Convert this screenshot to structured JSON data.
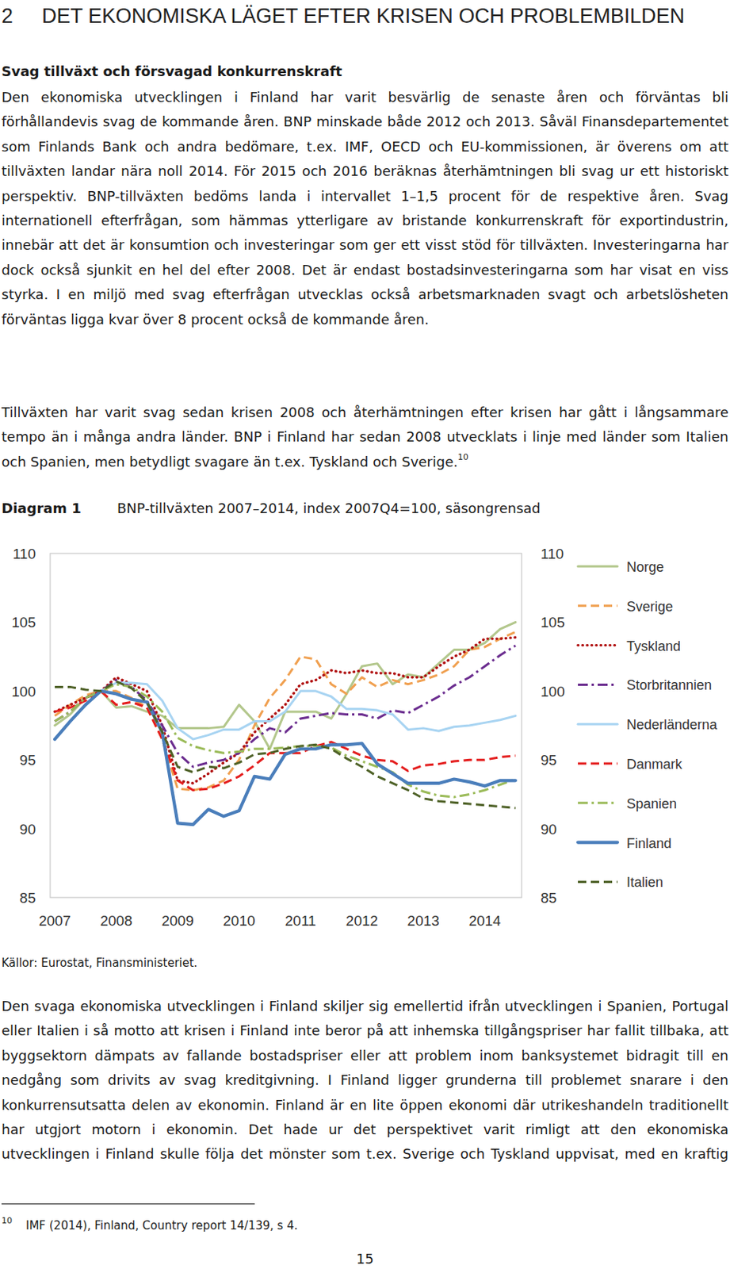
{
  "heading": {
    "number": "2",
    "text": "DET EKONOMISKA LÄGET EFTER KRISEN OCH PROBLEMBILDEN"
  },
  "subheading": "Svag tillväxt och försvagad konkurrenskraft",
  "paragraphs": [
    "Den ekonomiska utvecklingen i Finland har varit besvärlig de senaste åren och förväntas bli förhållandevis svag de kommande åren. BNP minskade både 2012 och 2013. Såväl Finansdepartementet som Finlands Bank och andra bedömare, t.ex. IMF, OECD och EU-kommissionen, är överens om att tillväxten landar nära noll 2014. För 2015 och 2016 beräknas återhämtningen bli svag ur ett historiskt perspektiv. BNP-tillväxten bedöms landa i intervallet 1–1,5 procent för de respektive åren. Svag internationell efterfrågan, som hämmas ytterligare av bristande konkurrenskraft för exportindustrin, innebär att det är konsumtion och investeringar som ger ett visst stöd för tillväxten. Investeringarna har dock också sjunkit en hel del efter 2008. Det är endast bostadsinvesteringarna som har visat en viss styrka. I en miljö med svag efterfrågan utvecklas också arbetsmarknaden svagt och arbetslösheten förväntas ligga kvar över 8 procent också de kommande åren.",
    "Tillväxten har varit svag sedan krisen 2008 och återhämtningen efter krisen har gått i långsammare tempo än i många andra länder. BNP i Finland har sedan 2008 utvecklats i linje med länder som Italien och Spanien, men betydligt svagare än t.ex. Tyskland och Sverige.",
    "Den svaga ekonomiska utvecklingen i Finland skiljer sig emellertid ifrån utvecklingen i Spanien, Portugal eller Italien i så motto att krisen i Finland inte beror på att inhemska tillgångspriser har fallit tillbaka, att byggsektorn dämpats av fallande bostadspriser eller att problem inom banksystemet bidragit till en nedgång som drivits av svag kreditgivning. I Finland ligger grunderna till problemet snarare i den konkurrensutsatta delen av ekonomin. Finland är en lite öppen ekonomi där utrikeshandeln traditionellt har utgjort motorn i ekonomin. Det hade ur det perspektivet varit rimligt att den ekonomiska utvecklingen i Finland skulle följa det mönster som t.ex. Sverige och Tyskland uppvisat, med en kraftig"
  ],
  "footnote_ref": "10",
  "diagram_label": "Diagram 1",
  "chart_data": {
    "type": "line",
    "title": "BNP-tillväxten 2007–2014, index 2007Q4=100, säsongrensad",
    "categories": [
      "2007",
      null,
      null,
      null,
      "2008",
      null,
      null,
      null,
      "2009",
      null,
      null,
      null,
      "2010",
      null,
      null,
      null,
      "2011",
      null,
      null,
      null,
      "2012",
      null,
      null,
      null,
      "2013",
      null,
      null,
      null,
      "2014",
      null,
      null
    ],
    "ylim": [
      85,
      110
    ],
    "yticks": [
      85,
      90,
      95,
      100,
      105,
      110
    ],
    "y2lim": [
      85,
      110
    ],
    "y2ticks": [
      85,
      90,
      95,
      100,
      105,
      110
    ],
    "grid": false,
    "legend": "right",
    "series": [
      {
        "name": "Norge",
        "color": "#b3c78c",
        "line_style": "solid",
        "values": [
          97.5,
          98.3,
          99.5,
          100,
          98.8,
          98.9,
          98.5,
          98.2,
          97.3,
          97.3,
          97.3,
          97.4,
          99.0,
          97.8,
          95.8,
          98.5,
          98.5,
          98.5,
          98.0,
          99.8,
          101.8,
          102.0,
          100.5,
          101.2,
          101.0,
          102.0,
          103.0,
          103.0,
          103.5,
          104.5,
          105.0
        ]
      },
      {
        "name": "Sverige",
        "color": "#f0a050",
        "line_style": "dashed",
        "values": [
          98.2,
          99.0,
          99.7,
          100,
          100.0,
          99.5,
          98.8,
          96.5,
          92.9,
          92.8,
          93.0,
          93.5,
          95.0,
          97.5,
          99.5,
          100.8,
          102.5,
          102.3,
          100.5,
          99.8,
          101.0,
          100.3,
          100.8,
          100.5,
          100.8,
          101.2,
          101.8,
          103.0,
          103.2,
          103.8,
          104.3
        ]
      },
      {
        "name": "Tyskland",
        "color": "#b01010",
        "line_style": "dotted",
        "values": [
          98.5,
          99.0,
          99.5,
          100,
          101.0,
          100.5,
          100.0,
          97.5,
          93.5,
          93.3,
          94.0,
          94.8,
          95.5,
          97.0,
          98.0,
          99.0,
          100.5,
          100.8,
          101.5,
          101.3,
          101.5,
          101.3,
          101.3,
          101.0,
          101.0,
          101.8,
          102.5,
          103.0,
          103.8,
          103.8,
          103.9
        ]
      },
      {
        "name": "Storbritannien",
        "color": "#6b2d8f",
        "line_style": "dashdot",
        "values": [
          97.8,
          98.5,
          99.5,
          100,
          100.8,
          100.3,
          99.3,
          97.5,
          95.5,
          94.5,
          94.8,
          95.0,
          95.5,
          96.5,
          97.3,
          97.0,
          98.0,
          98.2,
          98.4,
          98.3,
          98.3,
          98.0,
          98.6,
          98.4,
          99.0,
          99.6,
          100.4,
          101.0,
          101.8,
          102.6,
          103.3
        ]
      },
      {
        "name": "Nederländerna",
        "color": "#a8d4f2",
        "line_style": "solid",
        "values": [
          96.5,
          97.8,
          99.0,
          100,
          100.6,
          100.6,
          100.5,
          99.3,
          97.3,
          96.5,
          96.8,
          97.2,
          97.2,
          97.8,
          97.8,
          98.5,
          100.0,
          100.0,
          99.6,
          98.7,
          98.7,
          98.6,
          98.3,
          97.2,
          97.3,
          97.1,
          97.4,
          97.5,
          97.7,
          97.9,
          98.2
        ]
      },
      {
        "name": "Danmark",
        "color": "#e41e1e",
        "line_style": "dashed",
        "values": [
          98.5,
          98.8,
          99.3,
          100,
          99.0,
          99.2,
          98.8,
          96.5,
          93.5,
          92.8,
          92.9,
          93.3,
          93.8,
          94.6,
          95.5,
          95.5,
          95.5,
          96.0,
          96.3,
          95.8,
          95.3,
          95.0,
          94.9,
          94.2,
          94.6,
          94.7,
          94.9,
          95.0,
          95.0,
          95.2,
          95.3
        ]
      },
      {
        "name": "Spanien",
        "color": "#9bbb59",
        "line_style": "dashdot",
        "values": [
          97.8,
          98.5,
          99.5,
          100,
          100.5,
          100.3,
          99.6,
          98.5,
          96.6,
          96.0,
          95.7,
          95.5,
          95.6,
          95.8,
          95.8,
          95.9,
          96.0,
          96.0,
          95.9,
          95.3,
          94.9,
          94.5,
          94.1,
          93.2,
          92.7,
          92.4,
          92.3,
          92.5,
          92.8,
          93.2,
          93.6
        ]
      },
      {
        "name": "Finland",
        "color": "#4a7ebb",
        "line_style": "solid",
        "values": [
          96.5,
          97.8,
          99.0,
          100,
          99.8,
          99.4,
          99.2,
          97.0,
          90.4,
          90.3,
          91.4,
          90.9,
          91.3,
          93.8,
          93.6,
          95.4,
          95.8,
          95.8,
          96.1,
          96.1,
          96.2,
          94.7,
          94.0,
          93.3,
          93.3,
          93.3,
          93.6,
          93.4,
          93.1,
          93.5,
          93.5
        ]
      },
      {
        "name": "Italien",
        "color": "#4f6228",
        "line_style": "dashed",
        "values": [
          100.3,
          100.3,
          100.1,
          100,
          100.7,
          100.2,
          99.2,
          97.0,
          94.5,
          94.1,
          94.5,
          94.4,
          94.8,
          95.4,
          95.5,
          95.8,
          96.0,
          96.1,
          95.8,
          95.1,
          94.5,
          93.8,
          93.3,
          92.8,
          92.2,
          92.0,
          91.9,
          91.8,
          91.7,
          91.6,
          91.5
        ]
      }
    ]
  },
  "source": "Källor: Eurostat, Finansministeriet.",
  "footnote": {
    "number": "10",
    "text": "IMF (2014), Finland, Country report 14/139, s 4."
  },
  "page_number": "15"
}
